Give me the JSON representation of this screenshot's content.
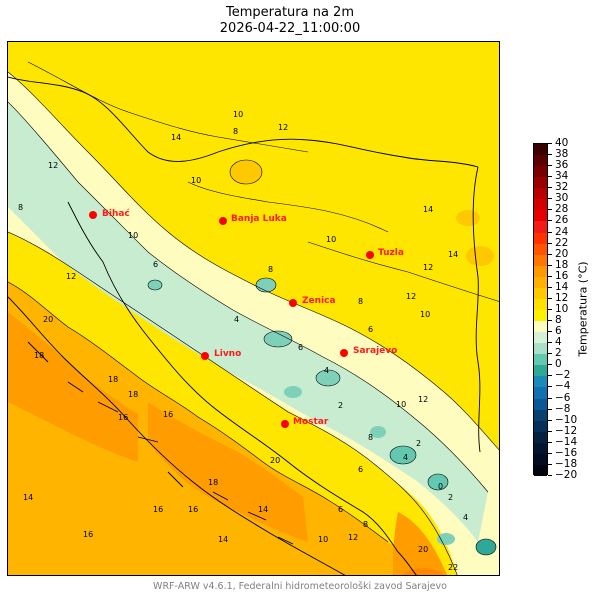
{
  "title": "Temperatura na 2m",
  "subtitle": "2026-04-22_11:00:00",
  "colorbar": {
    "label": "Temperatura (°C)",
    "ticks": [
      "40",
      "38",
      "36",
      "34",
      "32",
      "30",
      "28",
      "26",
      "24",
      "22",
      "20",
      "18",
      "16",
      "14",
      "12",
      "10",
      "8",
      "6",
      "4",
      "2",
      "0",
      "−2",
      "−4",
      "−6",
      "−8",
      "−10",
      "−12",
      "−14",
      "−16",
      "−18",
      "−20"
    ],
    "colors": [
      "#3a0000",
      "#5a0000",
      "#7a0000",
      "#9a0000",
      "#b80000",
      "#d40000",
      "#e60000",
      "#f51a1a",
      "#ff3300",
      "#ff5500",
      "#ff7700",
      "#ff9900",
      "#ffb000",
      "#ffc800",
      "#ffe000",
      "#fff000",
      "#fffcc0",
      "#d8f2d8",
      "#a8e0c8",
      "#62c8b0",
      "#30a898",
      "#1a8ab8",
      "#1070b0",
      "#0a5898",
      "#084070",
      "#063058",
      "#052040",
      "#041530",
      "#030c20",
      "#000510"
    ]
  },
  "cities": [
    {
      "name": "Bihać"
    },
    {
      "name": "Banja Luka"
    },
    {
      "name": "Tuzla"
    },
    {
      "name": "Zenica"
    },
    {
      "name": "Sarajevo"
    },
    {
      "name": "Livno"
    },
    {
      "name": "Mostar"
    }
  ],
  "contour_labels": [
    "14",
    "12",
    "10",
    "8",
    "10",
    "12",
    "14",
    "12",
    "10",
    "8",
    "6",
    "4",
    "6",
    "8",
    "10",
    "12",
    "2",
    "4",
    "6",
    "8",
    "10",
    "12",
    "14",
    "16",
    "18",
    "20",
    "18",
    "16",
    "14",
    "16",
    "18",
    "20",
    "18",
    "16",
    "14",
    "12",
    "10",
    "8",
    "6",
    "4",
    "2",
    "0",
    "2",
    "4",
    "6",
    "8",
    "10",
    "12",
    "14",
    "16",
    "20",
    "22"
  ],
  "footer": "WRF-ARW v4.6.1, Federalni hidrometeorološki zavod Sarajevo",
  "colors": {
    "sea": "#ffb400",
    "lowland": "#ffe600",
    "cool": "#fffcc0",
    "mountain": "#c8ecd0",
    "cold": "#7fd0b8",
    "warm": "#ff9c00",
    "city": "#ff0000"
  }
}
